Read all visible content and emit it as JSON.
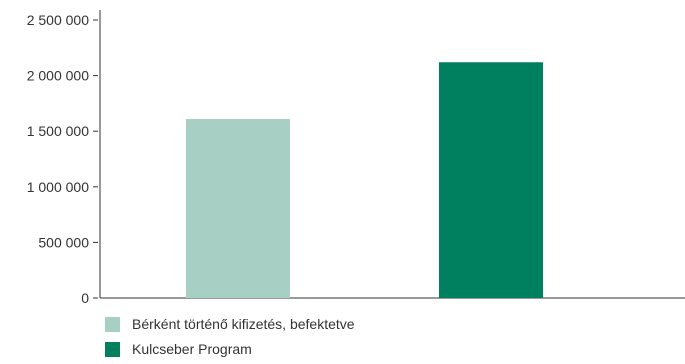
{
  "chart_data": {
    "type": "bar",
    "categories": [
      "Bérként történő kifizetés, befektetve",
      "Kulcseber Program"
    ],
    "series": [
      {
        "name": "Bérként történő kifizetés, befektetve",
        "values": [
          1610000,
          null
        ],
        "color": "#a8cfc3"
      },
      {
        "name": "Kulcseber Program",
        "values": [
          null,
          2120000
        ],
        "color": "#00805f"
      }
    ],
    "values": [
      1610000,
      2120000
    ],
    "colors": [
      "#a8cfc3",
      "#00805f"
    ],
    "ylim": [
      0,
      2500000
    ],
    "yticks": [
      0,
      500000,
      1000000,
      1500000,
      2000000,
      2500000
    ],
    "ytick_labels": [
      "0",
      "500 000",
      "1 000 000",
      "1 500 000",
      "2 000 000",
      "2 500 000"
    ],
    "grid": false,
    "legend_position": "bottom-left",
    "title": "",
    "xlabel": "",
    "ylabel": ""
  },
  "legend": {
    "items": [
      {
        "label": "Bérként történő kifizetés, befektetve",
        "color": "#a8cfc3"
      },
      {
        "label": "Kulcseber Program",
        "color": "#00805f"
      }
    ]
  }
}
